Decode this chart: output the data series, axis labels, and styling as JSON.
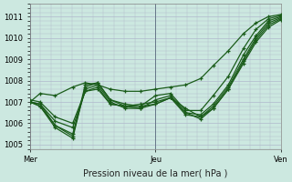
{
  "title": "Pression niveau de la mer( hPa )",
  "bg_color": "#cce8e0",
  "plot_bg_color": "#cce8e0",
  "grid_color": "#b0b8cc",
  "line_color": "#1a5c1a",
  "ylim": [
    1004.8,
    1011.6
  ],
  "yticks": [
    1005,
    1006,
    1007,
    1008,
    1009,
    1010,
    1011
  ],
  "day_labels": [
    "Mer",
    "Jeu",
    "Ven"
  ],
  "day_positions": [
    0.0,
    0.5,
    1.0
  ],
  "lines": [
    {
      "x": [
        0.0,
        0.04,
        0.1,
        0.17,
        0.22,
        0.27,
        0.32,
        0.38,
        0.44,
        0.5,
        0.56,
        0.62,
        0.68,
        0.73,
        0.79,
        0.85,
        0.9,
        0.95,
        1.0
      ],
      "y": [
        1007.0,
        1007.4,
        1007.3,
        1007.7,
        1007.9,
        1007.8,
        1007.6,
        1007.5,
        1007.5,
        1007.6,
        1007.7,
        1007.8,
        1008.1,
        1008.7,
        1009.4,
        1010.2,
        1010.7,
        1011.0,
        1011.1
      ]
    },
    {
      "x": [
        0.0,
        0.04,
        0.1,
        0.17,
        0.22,
        0.27,
        0.32,
        0.38,
        0.44,
        0.5,
        0.56,
        0.62,
        0.68,
        0.73,
        0.79,
        0.85,
        0.9,
        0.95,
        1.0
      ],
      "y": [
        1007.0,
        1006.8,
        1005.9,
        1005.4,
        1007.8,
        1007.9,
        1007.1,
        1006.9,
        1006.8,
        1007.3,
        1007.4,
        1006.6,
        1006.6,
        1007.3,
        1008.2,
        1009.5,
        1010.4,
        1010.9,
        1011.05
      ]
    },
    {
      "x": [
        0.0,
        0.04,
        0.1,
        0.17,
        0.22,
        0.27,
        0.32,
        0.38,
        0.44,
        0.5,
        0.56,
        0.62,
        0.68,
        0.73,
        0.79,
        0.85,
        0.9,
        0.95,
        1.0
      ],
      "y": [
        1007.0,
        1006.8,
        1005.8,
        1005.3,
        1007.7,
        1007.9,
        1007.1,
        1006.8,
        1006.7,
        1007.1,
        1007.3,
        1006.5,
        1006.4,
        1006.9,
        1007.8,
        1009.2,
        1010.1,
        1010.8,
        1011.0
      ]
    },
    {
      "x": [
        0.0,
        0.04,
        0.1,
        0.17,
        0.22,
        0.27,
        0.32,
        0.38,
        0.44,
        0.5,
        0.56,
        0.62,
        0.68,
        0.73,
        0.79,
        0.85,
        0.9,
        0.95,
        1.0
      ],
      "y": [
        1007.0,
        1006.9,
        1005.9,
        1005.5,
        1007.6,
        1007.8,
        1007.0,
        1006.7,
        1006.7,
        1006.9,
        1007.2,
        1006.4,
        1006.3,
        1006.8,
        1007.7,
        1009.0,
        1010.0,
        1010.7,
        1010.95
      ]
    },
    {
      "x": [
        0.0,
        0.04,
        0.1,
        0.17,
        0.22,
        0.27,
        0.32,
        0.38,
        0.44,
        0.5,
        0.56,
        0.62,
        0.68,
        0.73,
        0.79,
        0.85,
        0.9,
        0.95,
        1.0
      ],
      "y": [
        1007.0,
        1006.9,
        1006.1,
        1005.8,
        1007.5,
        1007.7,
        1006.9,
        1006.8,
        1006.8,
        1006.9,
        1007.2,
        1006.5,
        1006.2,
        1006.7,
        1007.6,
        1008.9,
        1009.9,
        1010.6,
        1010.9
      ]
    },
    {
      "x": [
        0.0,
        0.04,
        0.1,
        0.17,
        0.22,
        0.27,
        0.32,
        0.38,
        0.44,
        0.5,
        0.56,
        0.62,
        0.68,
        0.73,
        0.79,
        0.85,
        0.9,
        0.95,
        1.0
      ],
      "y": [
        1007.1,
        1007.0,
        1006.3,
        1006.0,
        1007.5,
        1007.6,
        1006.9,
        1006.8,
        1006.9,
        1007.0,
        1007.2,
        1006.7,
        1006.3,
        1006.7,
        1007.6,
        1008.8,
        1009.8,
        1010.5,
        1010.85
      ]
    }
  ]
}
